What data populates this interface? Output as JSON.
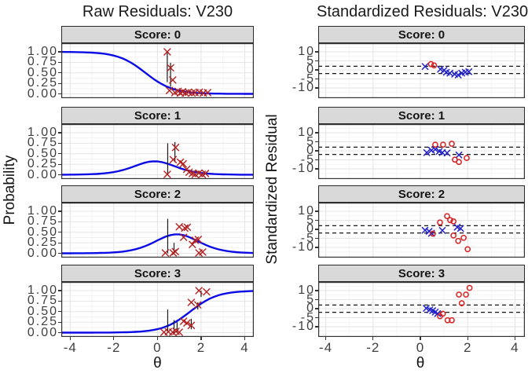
{
  "facets": [
    "Score: 0",
    "Score: 1",
    "Score: 2",
    "Score: 3"
  ],
  "axis": {
    "x_label": "θ",
    "x_ticks": [
      "-4",
      "-2",
      "0",
      "2",
      "4"
    ],
    "x_tick_values": [
      -4,
      -2,
      0,
      2,
      4
    ],
    "left_y_ticks": [
      "1.00",
      "0.75",
      "0.50",
      "0.25",
      "0.00"
    ],
    "left_y_tick_values": [
      1,
      0.75,
      0.5,
      0.25,
      0
    ],
    "right_y_ticks": [
      "10",
      "5",
      "0",
      "-5",
      "-10"
    ],
    "right_y_tick_values": [
      10,
      5,
      0,
      -5,
      -10
    ]
  },
  "colors": {
    "curve": "#0b0be6",
    "point_x_left": "#b02020",
    "segment": "#1a1a1a",
    "x_marker": "#2222c8",
    "o_marker": "#d81e1e",
    "dashed_line": "#1a1a1a",
    "strip_bg": "#d9d9d9",
    "panel_border": "#333333",
    "grid_major": "#e4e4e4",
    "grid_minor": "#f1f1f1",
    "tick_label": "#3f3f3f",
    "text": "#1a1a1a"
  },
  "chart_data": [
    {
      "type": "line",
      "title": "Raw Residuals: V230",
      "xlabel": "θ",
      "ylabel": "Probability",
      "xlim": [
        -4,
        4
      ],
      "ylim": [
        0,
        1
      ],
      "grid": true,
      "facets": [
        {
          "label": "Score: 0",
          "curve_model": {
            "model": "graded-response",
            "score": 0,
            "a": 1.6,
            "b": [
              -0.55,
              0.28,
              1.5
            ]
          },
          "points": [
            [
              0.45,
              1.0
            ],
            [
              0.6,
              0.62
            ],
            [
              0.7,
              0.33
            ],
            [
              0.55,
              0.08
            ],
            [
              0.8,
              0.03
            ],
            [
              0.95,
              0.06
            ],
            [
              1.05,
              0.02
            ],
            [
              1.15,
              0.05
            ],
            [
              1.28,
              0.02
            ],
            [
              1.42,
              0.04
            ],
            [
              1.58,
              0.02
            ],
            [
              1.72,
              0.03
            ],
            [
              1.92,
              0.04
            ],
            [
              2.1,
              0.02
            ],
            [
              2.3,
              0.03
            ]
          ],
          "residual_segments": [
            [
              0.45,
              1.0,
              0.28
            ],
            [
              0.6,
              0.74,
              0.17
            ]
          ]
        },
        {
          "label": "Score: 1",
          "curve_model": {
            "model": "graded-response",
            "score": 1,
            "a": 1.6,
            "b": [
              -0.55,
              0.28,
              1.5
            ]
          },
          "points": [
            [
              0.83,
              0.65
            ],
            [
              0.72,
              0.36
            ],
            [
              1.05,
              0.3
            ],
            [
              1.18,
              0.26
            ],
            [
              1.34,
              0.13
            ],
            [
              1.45,
              0.06
            ],
            [
              0.45,
              0.01
            ],
            [
              1.6,
              0.03
            ],
            [
              1.73,
              0.01
            ],
            [
              1.9,
              0.04
            ],
            [
              2.05,
              0.01
            ],
            [
              2.2,
              0.03
            ]
          ],
          "residual_segments": [
            [
              0.47,
              0.75,
              0.01
            ],
            [
              0.8,
              0.78,
              0.3
            ]
          ]
        },
        {
          "label": "Score: 2",
          "curve_model": {
            "model": "graded-response",
            "score": 2,
            "a": 1.6,
            "b": [
              -0.55,
              0.28,
              1.5
            ]
          },
          "points": [
            [
              1.0,
              0.63
            ],
            [
              1.25,
              0.6
            ],
            [
              1.37,
              0.62
            ],
            [
              1.2,
              0.38
            ],
            [
              1.73,
              0.31
            ],
            [
              1.87,
              0.33
            ],
            [
              1.6,
              0.21
            ],
            [
              0.36,
              0.01
            ],
            [
              0.72,
              0.01
            ],
            [
              0.82,
              0.04
            ],
            [
              1.9,
              0.01
            ],
            [
              2.07,
              0.03
            ]
          ],
          "residual_segments": [
            [
              0.47,
              0.82,
              0.0
            ],
            [
              0.76,
              0.25,
              0.0
            ]
          ]
        },
        {
          "label": "Score: 3",
          "curve_model": {
            "model": "graded-response",
            "score": 3,
            "a": 1.6,
            "b": [
              -0.55,
              0.28,
              1.5
            ]
          },
          "points": [
            [
              1.9,
              1.0
            ],
            [
              2.25,
              0.97
            ],
            [
              1.55,
              0.72
            ],
            [
              1.85,
              0.66
            ],
            [
              1.2,
              0.27
            ],
            [
              1.35,
              0.23
            ],
            [
              1.55,
              0.17
            ],
            [
              0.3,
              0.01
            ],
            [
              0.5,
              0.02
            ],
            [
              0.7,
              0.01
            ],
            [
              0.85,
              0.03
            ],
            [
              1.0,
              0.01
            ]
          ],
          "residual_segments": [
            [
              0.47,
              0.55,
              0.0
            ],
            [
              0.76,
              0.3,
              0.0
            ],
            [
              0.9,
              0.25,
              0.0
            ],
            [
              1.55,
              0.33,
              0.08
            ],
            [
              1.85,
              0.72,
              0.55
            ],
            [
              2.0,
              1.0,
              0.85
            ]
          ]
        }
      ]
    },
    {
      "type": "scatter",
      "title": "Standardized Residuals: V230",
      "xlabel": "θ",
      "ylabel": "Standardized Residual",
      "xlim": [
        -4,
        4
      ],
      "ylim": [
        -13,
        15
      ],
      "grid": true,
      "hlines": [
        2,
        -2
      ],
      "facets": [
        {
          "label": "Score: 0",
          "x_points": [
            [
              0.2,
              1.9
            ],
            [
              0.85,
              0.4
            ],
            [
              1.0,
              -0.2
            ],
            [
              1.1,
              -1.3
            ],
            [
              1.25,
              -1.8
            ],
            [
              1.45,
              -2.4
            ],
            [
              1.6,
              -2.8
            ],
            [
              1.75,
              -1.8
            ],
            [
              1.9,
              -1.3
            ],
            [
              2.05,
              -1.0
            ]
          ],
          "o_points": [
            [
              0.45,
              3.2
            ],
            [
              0.58,
              2.5
            ]
          ]
        },
        {
          "label": "Score: 1",
          "x_points": [
            [
              0.27,
              -1.0
            ],
            [
              0.47,
              0.3
            ],
            [
              0.63,
              0.8
            ],
            [
              0.8,
              -0.3
            ],
            [
              0.93,
              -1.0
            ],
            [
              1.13,
              -1.2
            ],
            [
              1.63,
              -2.3
            ]
          ],
          "o_points": [
            [
              0.63,
              3.4
            ],
            [
              0.96,
              3.4
            ],
            [
              1.33,
              3.9
            ],
            [
              1.46,
              -4.9
            ],
            [
              1.63,
              -6.2
            ],
            [
              1.96,
              -4.0
            ]
          ]
        },
        {
          "label": "Score: 2",
          "x_points": [
            [
              0.2,
              -0.5
            ],
            [
              0.37,
              -1.1
            ],
            [
              0.47,
              -2.2
            ],
            [
              0.93,
              -0.6
            ],
            [
              1.56,
              1.2
            ],
            [
              1.7,
              0.5
            ]
          ],
          "o_points": [
            [
              0.83,
              3.8
            ],
            [
              1.13,
              7.3
            ],
            [
              1.26,
              5.1
            ],
            [
              1.4,
              4.4
            ],
            [
              0.53,
              -2.4
            ],
            [
              1.4,
              -3.4
            ],
            [
              1.6,
              -6.4
            ],
            [
              1.83,
              -4.7
            ],
            [
              2.0,
              -11
            ]
          ]
        },
        {
          "label": "Score: 3",
          "x_points": [
            [
              0.25,
              0.2
            ],
            [
              0.4,
              -0.6
            ],
            [
              0.52,
              -1.1
            ],
            [
              0.63,
              -1.9
            ],
            [
              0.73,
              -2.7
            ]
          ],
          "o_points": [
            [
              0.83,
              -4.2
            ],
            [
              0.95,
              -2.8
            ],
            [
              1.15,
              -6.4
            ],
            [
              1.33,
              -6.4
            ],
            [
              1.63,
              7.8
            ],
            [
              1.75,
              3.0
            ],
            [
              1.93,
              7.8
            ],
            [
              2.08,
              11.5
            ]
          ]
        }
      ]
    }
  ]
}
